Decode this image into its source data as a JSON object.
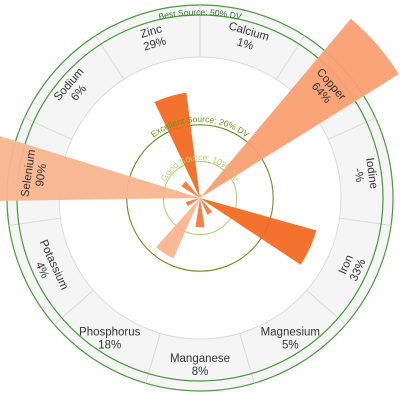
{
  "chart_data": {
    "type": "polar-bar",
    "unit": "% DV",
    "categories": [
      "Calcium",
      "Copper",
      "Iodine",
      "Iron",
      "Magnesium",
      "Manganese",
      "Phosphorus",
      "Potassium",
      "Selenium",
      "Sodium",
      "Zinc"
    ],
    "value_labels": [
      "1%",
      "64%",
      "-%",
      "33%",
      "5%",
      "8%",
      "18%",
      "4%",
      "90%",
      "6%",
      "29%"
    ],
    "values": [
      1,
      64,
      null,
      33,
      5,
      8,
      18,
      4,
      90,
      6,
      29
    ],
    "rmax": 50,
    "reference_lines": [
      {
        "label": "Best Source: 50% DV",
        "value": 50,
        "color": "#4a9a3c"
      },
      {
        "label": "Excellent Source: 20% DV",
        "value": 20,
        "color": "#6f8f1c"
      },
      {
        "label": "Good Source: 10% DV",
        "value": 10,
        "color": "#b4d272"
      }
    ],
    "colors": {
      "light": "#f9b58f",
      "mid": "#f9a072",
      "dark": "#f57a3c",
      "deep": "#f26a22",
      "ring_fill": "#f5f5f5",
      "ring_line": "#dcdcdc",
      "outer_ring": "#4a9a3c"
    }
  }
}
